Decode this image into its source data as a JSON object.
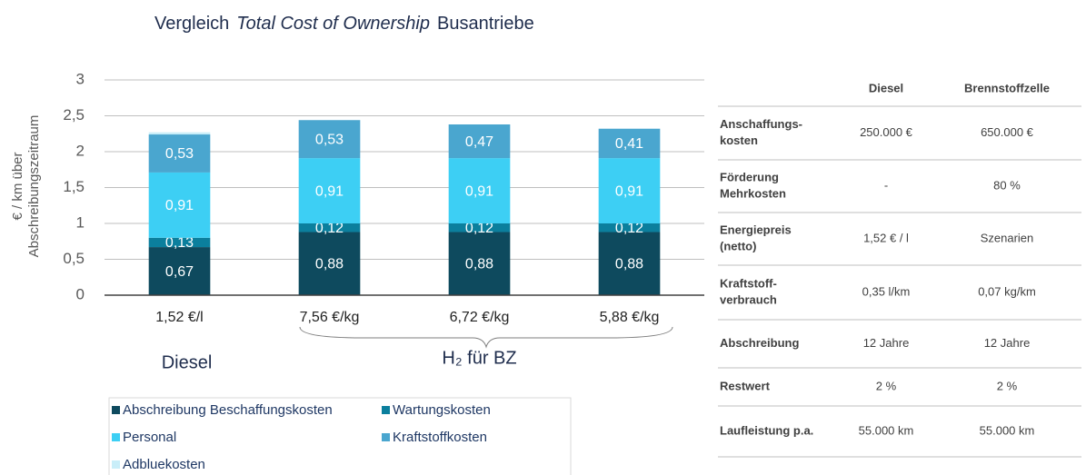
{
  "chart_data": {
    "type": "stacked_bar",
    "title": [
      "Vergleich",
      "Total Cost of Ownership",
      "Busantriebe"
    ],
    "y_label": [
      "€ / km über",
      "Abschreibungszeitraum"
    ],
    "categories": [
      "1,52 €/l",
      "7,56 €/kg",
      "6,72 €/kg",
      "5,88 €/kg"
    ],
    "groups": [
      "Diesel",
      "H₂ für BZ"
    ],
    "ylim": [
      0,
      3
    ],
    "yticks": [
      0,
      {
        "value": 0.5,
        "label": "0,5"
      },
      1,
      {
        "value": 1.5,
        "label": "1,5"
      },
      2,
      {
        "value": 2.5,
        "label": "2,5"
      },
      3
    ],
    "grid": true,
    "legend": "bottom",
    "series": [
      {
        "name": "Abschreibung Beschaffungskosten",
        "color": "#0e4a5e",
        "values": [
          0.67,
          0.88,
          0.88,
          0.88
        ],
        "value_labels": [
          "0,67",
          "0,88",
          "0,88",
          "0,88"
        ]
      },
      {
        "name": "Wartungskosten",
        "color": "#0b7f9d",
        "values": [
          0.13,
          0.12,
          0.12,
          0.12
        ],
        "value_labels": [
          "0,13",
          "0,12",
          "0,12",
          "0,12"
        ]
      },
      {
        "name": "Personal",
        "color": "#3dcff4",
        "values": [
          0.91,
          0.91,
          0.91,
          0.91
        ],
        "value_labels": [
          "0,91",
          "0,91",
          "0,91",
          "0,91"
        ]
      },
      {
        "name": "Kraftstoffkosten",
        "color": "#4aa6cf",
        "values": [
          0.53,
          0.53,
          0.47,
          0.41
        ],
        "value_labels": [
          "0,53",
          "0,53",
          "0,47",
          "0,41"
        ]
      },
      {
        "name": "Adbluekosten",
        "color": "#c9eef9",
        "values": [
          0.03,
          0,
          0,
          0
        ]
      }
    ]
  },
  "table": {
    "header": [
      "Diesel",
      "Brennstoffzelle"
    ],
    "rows": [
      {
        "label": [
          "Anschaffungs-",
          "kosten"
        ],
        "cells": [
          "250.000 €",
          "650.000 €"
        ]
      },
      {
        "label": [
          "Förderung",
          "Mehrkosten"
        ],
        "cells": [
          "-",
          "80 %"
        ]
      },
      {
        "label": [
          "Energiepreis",
          "(netto)"
        ],
        "cells": [
          "1,52 € / l",
          "Szenarien"
        ]
      },
      {
        "label": [
          "Kraftstoff-",
          "verbrauch"
        ],
        "cells": [
          "0,35 l/km",
          "0,07 kg/km"
        ]
      },
      {
        "label": [
          "Abschreibung"
        ],
        "cells": [
          "12 Jahre",
          "12 Jahre"
        ]
      },
      {
        "label": [
          "Restwert"
        ],
        "cells": [
          "2 %",
          "2 %"
        ]
      },
      {
        "label": [
          "Laufleistung p.a."
        ],
        "cells": [
          "55.000 km",
          "55.000 km"
        ]
      }
    ]
  }
}
